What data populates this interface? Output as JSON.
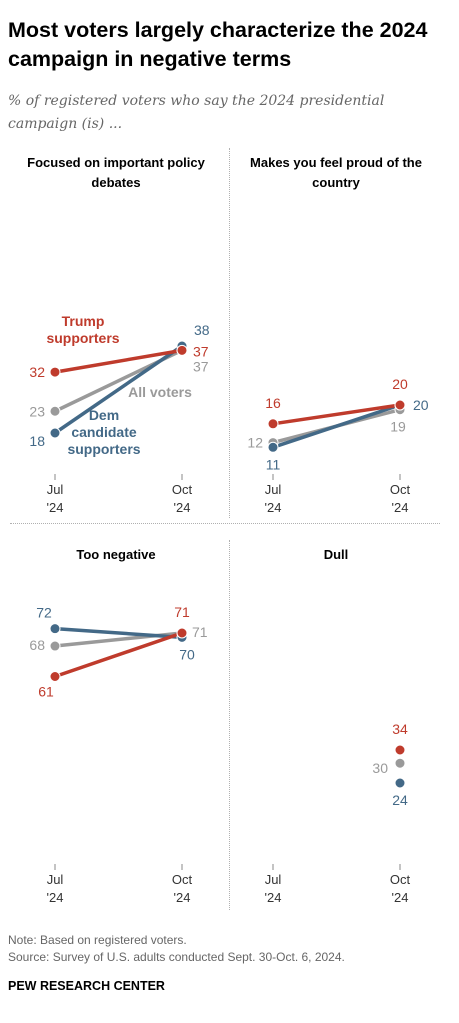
{
  "title": "Most voters largely characterize the 2024 campaign in negative terms",
  "subtitle": "% of registered voters who say the 2024 presidential campaign (is) ...",
  "note": "Note: Based on registered voters.",
  "source": "Source: Survey of U.S. adults conducted Sept. 30-Oct. 6, 2024.",
  "brand": "PEW RESEARCH CENTER",
  "colors": {
    "trump": "#bf3b2c",
    "dem": "#436987",
    "all": "#9a9a9a"
  },
  "chart_data": [
    {
      "type": "line",
      "title": "Focused on important policy debates",
      "x": [
        "Jul '24",
        "Oct '24"
      ],
      "series": [
        {
          "name": "Trump supporters",
          "values": [
            32,
            37
          ]
        },
        {
          "name": "All voters",
          "values": [
            23,
            37
          ]
        },
        {
          "name": "Dem candidate supporters",
          "values": [
            18,
            38
          ]
        }
      ]
    },
    {
      "type": "line",
      "title": "Makes you feel proud of the country",
      "x": [
        "Jul '24",
        "Oct '24"
      ],
      "series": [
        {
          "name": "Trump supporters",
          "values": [
            16,
            20
          ]
        },
        {
          "name": "All voters",
          "values": [
            12,
            19
          ]
        },
        {
          "name": "Dem candidate supporters",
          "values": [
            11,
            20
          ]
        }
      ]
    },
    {
      "type": "line",
      "title": "Too negative",
      "x": [
        "Jul '24",
        "Oct '24"
      ],
      "series": [
        {
          "name": "Trump supporters",
          "values": [
            61,
            71
          ]
        },
        {
          "name": "All voters",
          "values": [
            68,
            71
          ]
        },
        {
          "name": "Dem candidate supporters",
          "values": [
            72,
            70
          ]
        }
      ]
    },
    {
      "type": "scatter",
      "title": "Dull",
      "x": [
        "Jul '24",
        "Oct '24"
      ],
      "series": [
        {
          "name": "Trump supporters",
          "values": [
            null,
            34
          ]
        },
        {
          "name": "All voters",
          "values": [
            null,
            30
          ]
        },
        {
          "name": "Dem candidate supporters",
          "values": [
            null,
            24
          ]
        }
      ]
    }
  ]
}
